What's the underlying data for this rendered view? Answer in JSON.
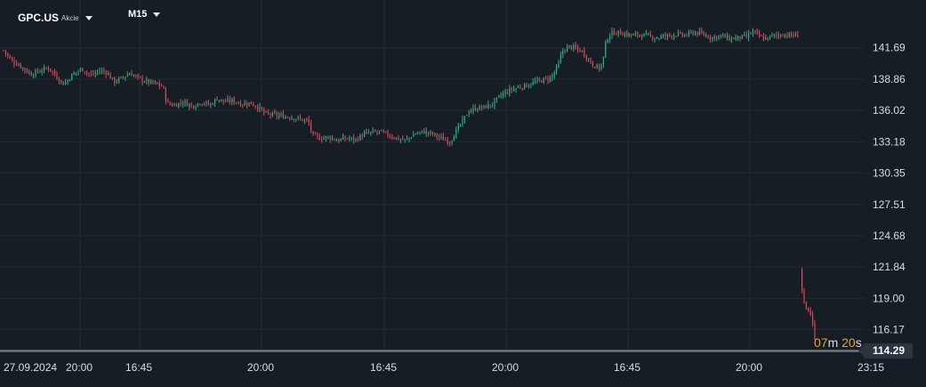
{
  "header": {
    "symbol": "GPC.US",
    "instrument_type": "Akcie",
    "timeframe": "M15"
  },
  "countdown": {
    "minutes": "07",
    "m_unit": "m",
    "seconds": "20",
    "s_unit": "s"
  },
  "last_price_label": "114.29",
  "colors": {
    "background": "#161d24",
    "grid": "#222b34",
    "up": "#26b386",
    "down": "#e0475a",
    "axis_text": "#d6dde4",
    "countdown": "#f0a02a",
    "price_tag": "#2c3440"
  },
  "chart_data": {
    "type": "candlestick",
    "symbol": "GPC.US",
    "timeframe": "M15",
    "ylim": [
      114.2,
      143.6
    ],
    "y_ticks": [
      "141.69",
      "138.86",
      "136.02",
      "133.18",
      "130.35",
      "127.51",
      "124.68",
      "121.84",
      "119.00",
      "116.17"
    ],
    "x_ticks": [
      "27.09.2024",
      "20:00",
      "16:45",
      "20:00",
      "16:45",
      "20:00",
      "16:45",
      "20:00",
      "23:15"
    ],
    "last_price": 114.29,
    "close_path": [
      [
        0,
        141.9
      ],
      [
        12,
        140.6
      ],
      [
        22,
        140.1
      ],
      [
        35,
        139.3
      ],
      [
        45,
        139.6
      ],
      [
        55,
        139.9
      ],
      [
        63,
        139.1
      ],
      [
        72,
        138.4
      ],
      [
        82,
        139.3
      ],
      [
        92,
        139.8
      ],
      [
        102,
        139.2
      ],
      [
        112,
        139.6
      ],
      [
        120,
        139.5
      ],
      [
        128,
        138.6
      ],
      [
        136,
        138.9
      ],
      [
        146,
        139.4
      ],
      [
        156,
        138.9
      ],
      [
        166,
        138.6
      ],
      [
        176,
        138.4
      ],
      [
        183,
        138.2
      ],
      [
        188,
        136.6
      ],
      [
        196,
        136.5
      ],
      [
        206,
        136.8
      ],
      [
        216,
        136.4
      ],
      [
        226,
        136.8
      ],
      [
        236,
        136.5
      ],
      [
        244,
        137.1
      ],
      [
        252,
        136.8
      ],
      [
        262,
        136.9
      ],
      [
        272,
        136.6
      ],
      [
        282,
        136.7
      ],
      [
        292,
        136.2
      ],
      [
        298,
        135.7
      ],
      [
        308,
        135.6
      ],
      [
        318,
        135.5
      ],
      [
        328,
        135.4
      ],
      [
        338,
        135.2
      ],
      [
        346,
        135.1
      ],
      [
        352,
        133.7
      ],
      [
        360,
        133.5
      ],
      [
        370,
        133.6
      ],
      [
        380,
        133.3
      ],
      [
        390,
        133.5
      ],
      [
        400,
        133.4
      ],
      [
        410,
        133.9
      ],
      [
        418,
        134.0
      ],
      [
        426,
        134.1
      ],
      [
        436,
        133.8
      ],
      [
        446,
        133.5
      ],
      [
        456,
        133.3
      ],
      [
        466,
        133.9
      ],
      [
        476,
        134.1
      ],
      [
        486,
        133.9
      ],
      [
        496,
        133.5
      ],
      [
        506,
        133.2
      ],
      [
        514,
        134.3
      ],
      [
        520,
        135.0
      ],
      [
        526,
        135.9
      ],
      [
        534,
        136.2
      ],
      [
        544,
        136.3
      ],
      [
        554,
        136.6
      ],
      [
        562,
        137.3
      ],
      [
        572,
        137.8
      ],
      [
        582,
        138.1
      ],
      [
        592,
        138.3
      ],
      [
        602,
        138.6
      ],
      [
        612,
        138.8
      ],
      [
        620,
        139.0
      ],
      [
        628,
        140.2
      ],
      [
        632,
        141.4
      ],
      [
        640,
        141.8
      ],
      [
        648,
        141.6
      ],
      [
        654,
        141.4
      ],
      [
        660,
        140.8
      ],
      [
        666,
        140.2
      ],
      [
        674,
        139.8
      ],
      [
        678,
        140.6
      ],
      [
        682,
        142.6
      ],
      [
        690,
        143.1
      ],
      [
        700,
        143.0
      ],
      [
        710,
        142.8
      ],
      [
        720,
        142.9
      ],
      [
        730,
        142.7
      ],
      [
        740,
        142.6
      ],
      [
        750,
        142.8
      ],
      [
        760,
        142.9
      ],
      [
        770,
        142.8
      ],
      [
        780,
        143.1
      ],
      [
        790,
        142.9
      ],
      [
        800,
        142.6
      ],
      [
        810,
        142.8
      ],
      [
        820,
        142.5
      ],
      [
        830,
        142.6
      ],
      [
        840,
        142.7
      ],
      [
        846,
        143.2
      ],
      [
        852,
        142.8
      ],
      [
        860,
        142.5
      ],
      [
        870,
        142.8
      ],
      [
        880,
        142.9
      ],
      [
        890,
        142.8
      ],
      [
        897,
        142.8
      ],
      [
        900,
        120.7
      ],
      [
        904,
        118.4
      ],
      [
        908,
        118.0
      ],
      [
        912,
        117.4
      ],
      [
        916,
        115.3
      ],
      [
        920,
        114.4
      ]
    ]
  }
}
